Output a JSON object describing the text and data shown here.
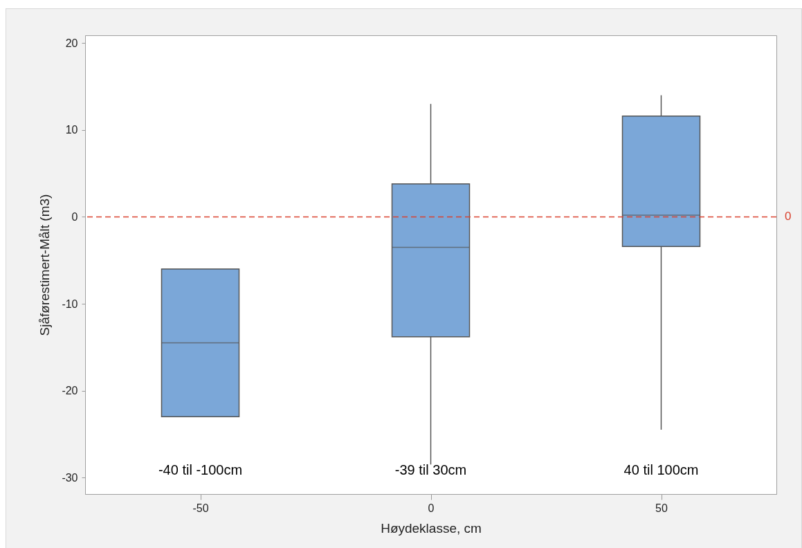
{
  "chart_data": {
    "type": "box",
    "title": null,
    "x": [
      -50,
      0,
      50
    ],
    "boxes": [
      {
        "low": -23,
        "q1": -23,
        "median": -14.5,
        "q3": -6,
        "high": -6
      },
      {
        "low": -28.5,
        "q1": -13.8,
        "median": -3.5,
        "q3": 3.8,
        "high": 13
      },
      {
        "low": -24.5,
        "q1": -3.4,
        "median": 0.2,
        "q3": 11.6,
        "high": 14
      }
    ],
    "color": "#7ba7d8",
    "xlabel": "Høydeklasse, cm",
    "ylabel": "Sjåførestimert-Målt (m3)",
    "xlim": [
      -75,
      75
    ],
    "xticks": [
      -50,
      0,
      50
    ],
    "ylim": [
      -31.9,
      20.9
    ],
    "yticks": [
      -30,
      -20,
      -10,
      0,
      10,
      20
    ],
    "grid": false,
    "ref_lines": [
      {
        "axis": "y",
        "value": 0,
        "label": "0",
        "color": "#d9412e",
        "line_style": "dashed"
      }
    ],
    "annotations": [
      "-40 til -100cm",
      "-39 til 30cm",
      "40 til 100cm"
    ]
  }
}
